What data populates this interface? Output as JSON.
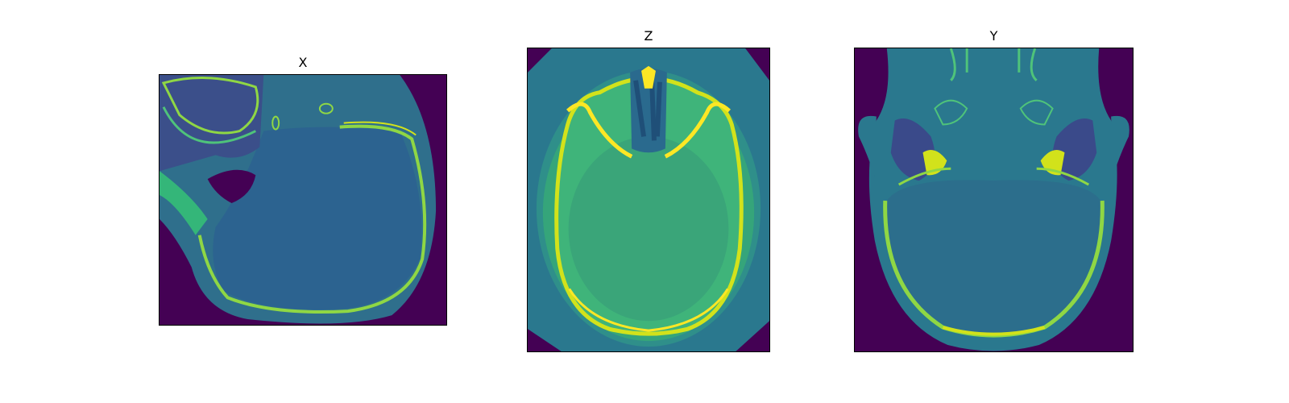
{
  "figure": {
    "panels": [
      {
        "title": "X",
        "view": "sagittal"
      },
      {
        "title": "Z",
        "view": "axial"
      },
      {
        "title": "Y",
        "view": "coronal"
      }
    ],
    "colormap": {
      "name": "viridis",
      "background": "#440154",
      "soft_tissue": "#2f7a8a",
      "brain": "#2c6e8c",
      "brain_axial": "#3aa579",
      "scalp_axial": "#2f8f8a",
      "bone": "#d2e21b",
      "bone_bright": "#fde725",
      "bone_mid": "#8fd744"
    }
  }
}
